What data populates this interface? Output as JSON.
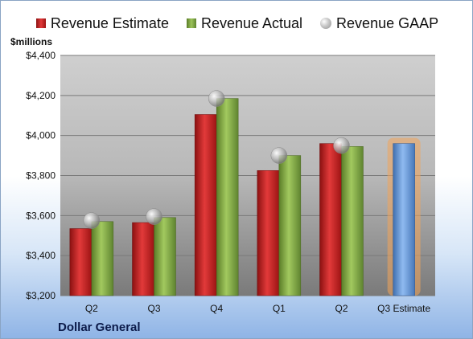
{
  "chart_data": {
    "type": "bar",
    "title": "",
    "ylabel": "$millions",
    "company": "Dollar General",
    "categories": [
      "Q2",
      "Q3",
      "Q4",
      "Q1",
      "Q2",
      "Q3 Estimate"
    ],
    "ylim": [
      3200,
      4400
    ],
    "yticks": [
      3200,
      3400,
      3600,
      3800,
      4000,
      4200,
      4400
    ],
    "ytick_labels": [
      "$3,200",
      "$3,400",
      "$3,600",
      "$3,800",
      "$4,000",
      "$4,200",
      "$4,400"
    ],
    "grid": true,
    "legend_position": "top",
    "series": [
      {
        "name": "Revenue Estimate",
        "kind": "bar",
        "color": "#c41f1f",
        "values": [
          3535,
          3565,
          4105,
          3825,
          3960,
          null
        ]
      },
      {
        "name": "Revenue Actual",
        "kind": "bar",
        "color": "#7ea544",
        "values": [
          3570,
          3590,
          4185,
          3900,
          3945,
          null
        ]
      },
      {
        "name": "Revenue GAAP",
        "kind": "marker",
        "color": "#a0a0a0",
        "values": [
          3575,
          3595,
          4185,
          3900,
          3950,
          null
        ]
      }
    ],
    "estimate_bar": {
      "category": "Q3 Estimate",
      "value": 3960,
      "color": "#6f9fd8",
      "highlight": "#f2a45a"
    }
  }
}
